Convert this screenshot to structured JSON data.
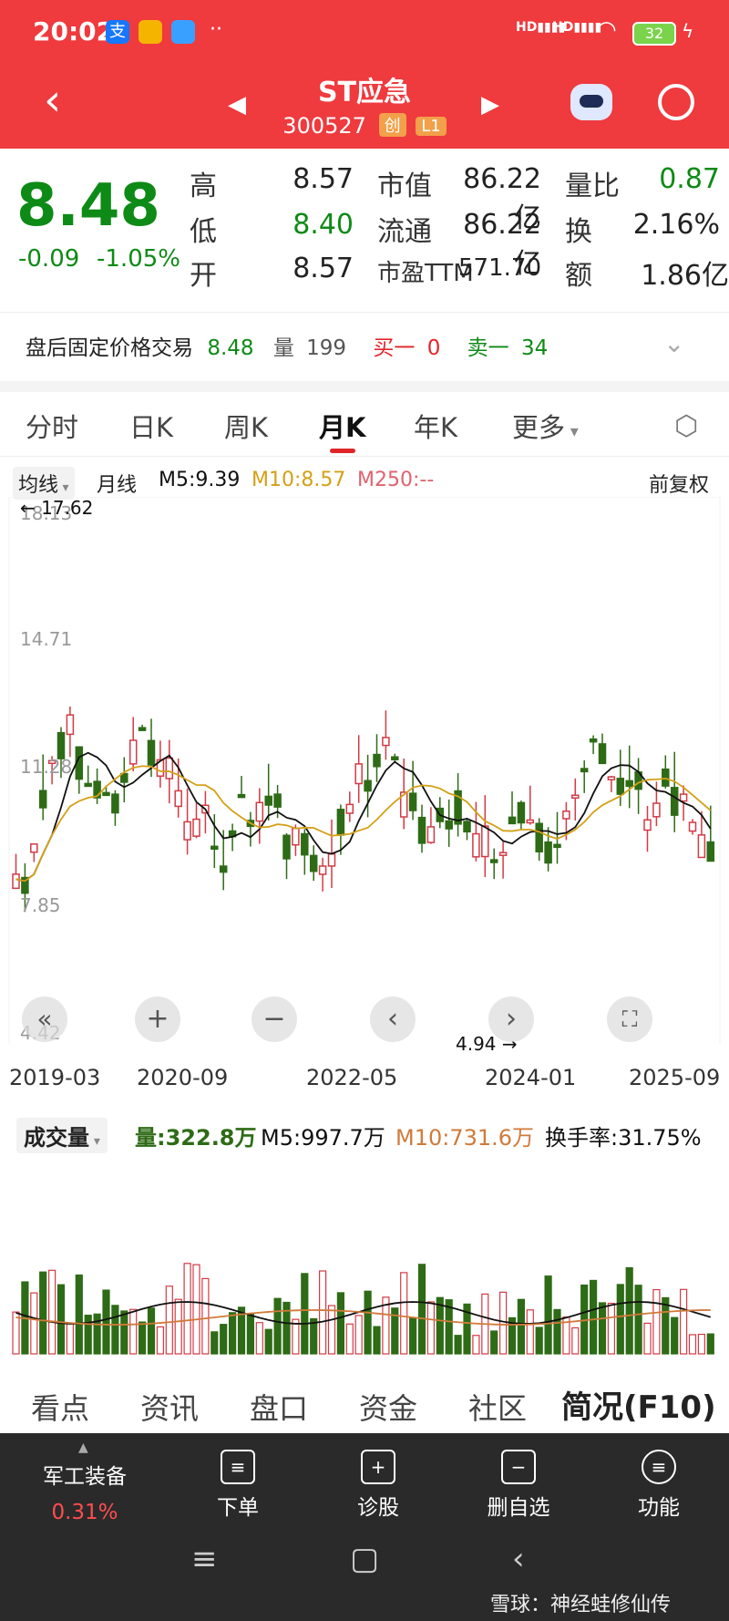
{
  "status": {
    "time": "20:02",
    "battery": "32",
    "network": "HD",
    "app_icon_1": "支"
  },
  "header": {
    "title": "ST应急",
    "code": "300527",
    "tag1": "创",
    "tag2": "L1"
  },
  "quote": {
    "price": "8.48",
    "change": "-0.09",
    "change_pct": "-1.05%",
    "high_label": "高",
    "high": "8.57",
    "low_label": "低",
    "low": "8.40",
    "open_label": "开",
    "open": "8.57",
    "mcap_label": "市值",
    "mcap": "86.22亿",
    "float_label": "流通",
    "float": "86.22亿",
    "pe_label": "市盈TTM",
    "pe": "571.70",
    "vr_label": "量比",
    "vr": "0.87",
    "turn_label": "换",
    "turn": "2.16%",
    "amount_label": "额",
    "amount": "1.86亿"
  },
  "afterhours": {
    "label": "盘后固定价格交易",
    "price": "8.48",
    "vol_label": "量",
    "vol": "199",
    "buy_label": "买一",
    "buy": "0",
    "sell_label": "卖一",
    "sell": "34"
  },
  "tabs": [
    "分时",
    "日K",
    "周K",
    "月K",
    "年K",
    "更多"
  ],
  "ma": {
    "selector": "均线",
    "period": "月线",
    "m5": "M5:9.39",
    "m10": "M10:8.57",
    "m250": "M250:--",
    "adjust": "前复权"
  },
  "chart_labels": {
    "high_mark": "17.62",
    "low_mark": "4.94",
    "y1": "18.13",
    "y2": "14.71",
    "y3": "11.28",
    "y4": "7.85",
    "y5": "4.42"
  },
  "xaxis": [
    "2019-03",
    "2020-09",
    "2022-05",
    "2024-01",
    "2025-09"
  ],
  "vol": {
    "selector": "成交量",
    "vol": "量:322.8万",
    "m5": "M5:997.7万",
    "m10": "M10:731.6万",
    "turnover": "换手率:31.75%"
  },
  "bottom_tabs": [
    "看点",
    "资讯",
    "盘口",
    "资金",
    "社区",
    "简况(F10)"
  ],
  "nav": {
    "sector": "军工装备",
    "sector_pct": "0.31%",
    "items": [
      "下单",
      "诊股",
      "删自选",
      "功能"
    ]
  },
  "watermark": "雪球：神经蛙修仙传",
  "colors": {
    "header": "#ef3a3e",
    "up": "#e0262b",
    "down": "#2e6b16",
    "m5": "#111111",
    "m10": "#d4a017",
    "m250": "#e0626e"
  }
}
